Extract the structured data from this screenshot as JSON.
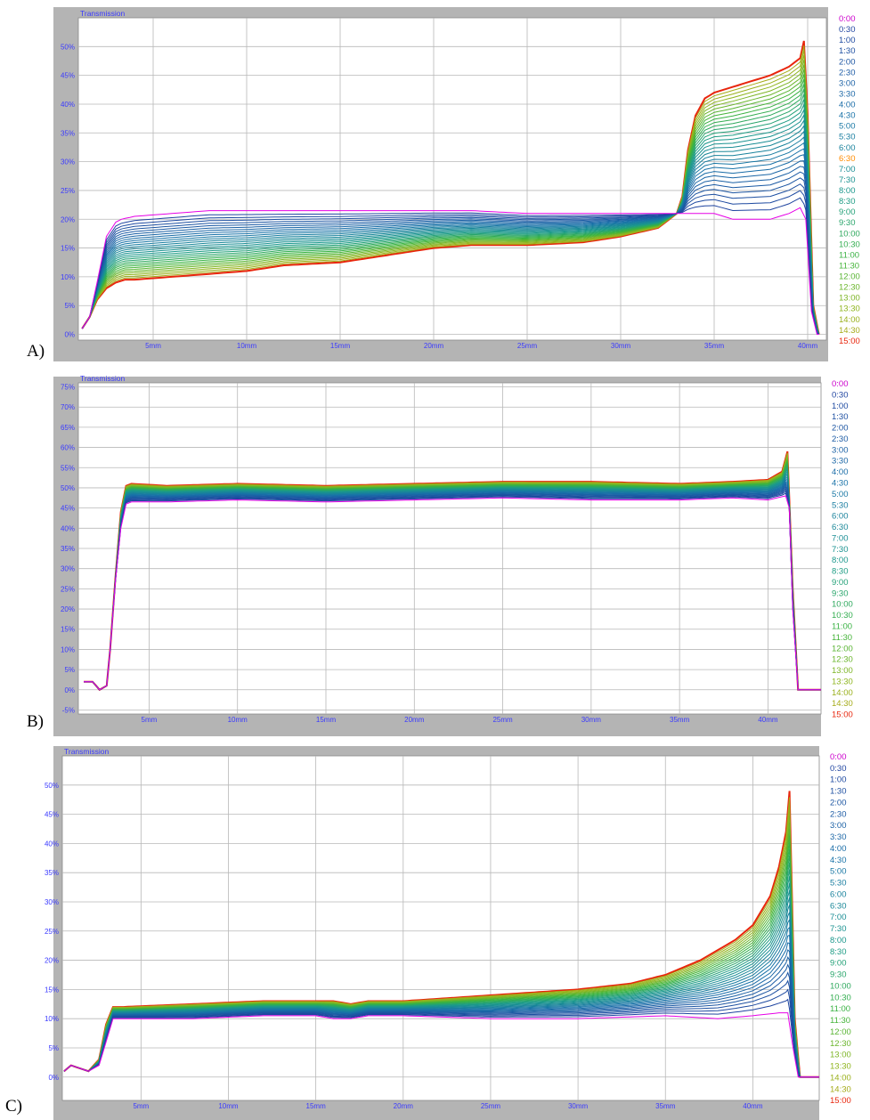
{
  "panel_labels": [
    "A)",
    "B)",
    "C)"
  ],
  "colors": {
    "frame": "#b4b4b4",
    "plot_bg": "#ffffff",
    "grid": "#b8b8b8",
    "axis_text": "#3a3aff",
    "initial": "#e600e6",
    "final": "#e8250c",
    "legend_first": "#cc00cc",
    "legend_mid_orange": "#ff8c00"
  },
  "legend_times": [
    "0:00",
    "0:30",
    "1:00",
    "1:30",
    "2:00",
    "2:30",
    "3:00",
    "3:30",
    "4:00",
    "4:30",
    "5:00",
    "5:30",
    "6:00",
    "6:30",
    "7:00",
    "7:30",
    "8:00",
    "8:30",
    "9:00",
    "9:30",
    "10:00",
    "10:30",
    "11:00",
    "11:30",
    "12:00",
    "12:30",
    "13:00",
    "13:30",
    "14:00",
    "14:30",
    "15:00"
  ],
  "chart_data": [
    {
      "type": "line",
      "panel": "A)",
      "title": "Transmission",
      "xlabel": "",
      "ylabel": "",
      "xlim": [
        1,
        41
      ],
      "ylim": [
        -1,
        55
      ],
      "x_ticks": [
        5,
        10,
        15,
        20,
        25,
        30,
        35,
        40
      ],
      "x_tick_labels": [
        "5mm",
        "10mm",
        "15mm",
        "20mm",
        "25mm",
        "30mm",
        "35mm",
        "40mm"
      ],
      "y_ticks": [
        0,
        5,
        10,
        15,
        20,
        25,
        30,
        35,
        40,
        45,
        50
      ],
      "y_tick_labels": [
        "0%",
        "5%",
        "10%",
        "15%",
        "20%",
        "25%",
        "30%",
        "35%",
        "40%",
        "45%",
        "50%"
      ],
      "grid": true,
      "legend_position": "right",
      "legend_orange_index": 13,
      "series_count": 31,
      "initial_profile_0_00": {
        "x": [
          1.2,
          1.6,
          2.0,
          2.5,
          3.0,
          3.3,
          4,
          6,
          8,
          10,
          12,
          15,
          18,
          20,
          22,
          25,
          28,
          30,
          32,
          33,
          34,
          35,
          36,
          37,
          38,
          39,
          39.6,
          39.9,
          40.2,
          40.5
        ],
        "y": [
          1,
          3,
          9,
          17,
          19.5,
          20,
          20.5,
          21,
          21.5,
          21.5,
          21.5,
          21.5,
          21.5,
          21.5,
          21.5,
          21,
          21,
          21,
          21,
          21,
          21,
          21,
          20,
          20,
          20,
          21,
          22,
          20,
          4,
          0
        ]
      },
      "final_profile_15_00": {
        "x": [
          1.2,
          1.6,
          2.0,
          2.5,
          3.0,
          3.5,
          4,
          6,
          8,
          10,
          12,
          15,
          18,
          20,
          22,
          25,
          28,
          30,
          32,
          33,
          33.3,
          33.6,
          34,
          34.5,
          35,
          36,
          37,
          38,
          39,
          39.6,
          39.8,
          40.0,
          40.3,
          40.6
        ],
        "y": [
          1,
          3,
          6,
          8,
          9,
          9.5,
          9.5,
          10,
          10.5,
          11,
          12,
          12.5,
          14,
          15,
          15.5,
          15.5,
          16,
          17,
          18.5,
          21,
          24,
          32,
          38,
          41,
          42,
          43,
          44,
          45,
          46.5,
          48,
          51,
          38,
          5,
          0
        ]
      }
    },
    {
      "type": "line",
      "panel": "B)",
      "title": "Transmission",
      "xlabel": "",
      "ylabel": "",
      "xlim": [
        1,
        43
      ],
      "ylim": [
        -6,
        76
      ],
      "x_ticks": [
        5,
        10,
        15,
        20,
        25,
        30,
        35,
        40
      ],
      "x_tick_labels": [
        "5mm",
        "10mm",
        "15mm",
        "20mm",
        "25mm",
        "30mm",
        "35mm",
        "40mm"
      ],
      "y_ticks": [
        -5,
        0,
        5,
        10,
        15,
        20,
        25,
        30,
        35,
        40,
        45,
        50,
        55,
        60,
        65,
        70,
        75
      ],
      "y_tick_labels": [
        "-5%",
        "0%",
        "5%",
        "10%",
        "15%",
        "20%",
        "25%",
        "30%",
        "35%",
        "40%",
        "45%",
        "50%",
        "55%",
        "60%",
        "65%",
        "70%",
        "75%"
      ],
      "grid": true,
      "legend_position": "right",
      "legend_orange_index": -1,
      "series_count": 31,
      "initial_profile_0_00": {
        "x": [
          1.3,
          1.8,
          2.2,
          2.6,
          2.8,
          3.1,
          3.4,
          3.7,
          4,
          6,
          10,
          15,
          20,
          25,
          30,
          35,
          38,
          40,
          41,
          41.2,
          41.4,
          41.7,
          42,
          43
        ],
        "y": [
          2,
          2,
          0,
          1,
          10,
          27,
          40,
          46,
          46.5,
          46.5,
          47,
          46.5,
          47,
          47.5,
          47,
          47,
          47.5,
          47,
          48,
          45,
          20,
          0,
          0,
          0
        ]
      },
      "final_profile_15_00": {
        "x": [
          1.3,
          1.8,
          2.2,
          2.6,
          2.8,
          3.1,
          3.4,
          3.7,
          4,
          6,
          10,
          15,
          20,
          25,
          30,
          35,
          38,
          40,
          40.8,
          41.1,
          41.4,
          41.7,
          42,
          43
        ],
        "y": [
          2,
          2,
          0,
          1,
          10,
          28,
          44,
          50.5,
          51,
          50.5,
          51,
          50.5,
          51,
          51.5,
          51.5,
          51,
          51.5,
          52,
          54,
          59,
          25,
          0,
          0,
          0
        ]
      }
    },
    {
      "type": "line",
      "panel": "C)",
      "title": "Transmission",
      "xlabel": "",
      "ylabel": "",
      "xlim": [
        0.5,
        43.8
      ],
      "ylim": [
        -4,
        55
      ],
      "x_ticks": [
        5,
        10,
        15,
        20,
        25,
        30,
        35,
        40
      ],
      "x_tick_labels": [
        "5mm",
        "10mm",
        "15mm",
        "20mm",
        "25mm",
        "30mm",
        "35mm",
        "40mm"
      ],
      "y_ticks": [
        0,
        5,
        10,
        15,
        20,
        25,
        30,
        35,
        40,
        45,
        50
      ],
      "y_tick_labels": [
        "0%",
        "5%",
        "10%",
        "15%",
        "20%",
        "25%",
        "30%",
        "35%",
        "40%",
        "45%",
        "50%"
      ],
      "grid": true,
      "legend_position": "right",
      "legend_orange_index": -1,
      "series_count": 31,
      "initial_profile_0_00": {
        "x": [
          0.6,
          1.0,
          1.5,
          2.0,
          2.6,
          3.0,
          3.4,
          4,
          8,
          12,
          15,
          16,
          17,
          18,
          20,
          25,
          30,
          35,
          38,
          40,
          41.5,
          42,
          42.3,
          42.6,
          43,
          43.8
        ],
        "y": [
          1,
          2,
          1.5,
          1,
          2,
          6,
          10,
          10,
          10,
          10.5,
          10.5,
          10,
          10,
          10.5,
          10.5,
          10,
          10,
          10.5,
          10,
          10.5,
          11,
          11,
          5,
          0,
          0,
          0
        ]
      },
      "final_profile_15_00": {
        "x": [
          0.6,
          1.0,
          1.5,
          2.0,
          2.6,
          3.0,
          3.4,
          4,
          8,
          12,
          15,
          16,
          17,
          18,
          20,
          25,
          30,
          33,
          35,
          37,
          39,
          40,
          41,
          41.5,
          41.9,
          42.1,
          42.4,
          42.7,
          43.8
        ],
        "y": [
          1,
          2,
          1.5,
          1,
          3,
          9,
          12,
          12,
          12.5,
          13,
          13,
          13,
          12.5,
          13,
          13,
          14,
          15,
          16,
          17.5,
          20,
          23.5,
          26,
          31,
          36,
          42,
          49,
          10,
          0,
          0
        ]
      }
    }
  ]
}
